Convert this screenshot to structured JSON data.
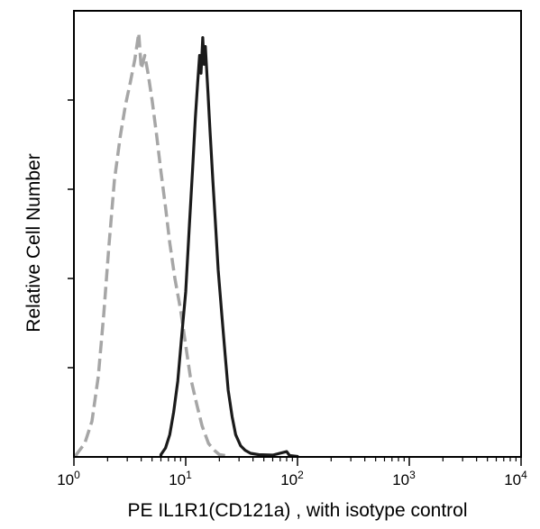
{
  "chart_data": {
    "type": "line",
    "xlabel": "PE IL1R1(CD121a) , with isotype control",
    "ylabel": "Relative Cell Number",
    "x_scale": "log",
    "xlim": [
      1,
      10000
    ],
    "ylim": [
      0,
      100
    ],
    "x_ticks": [
      {
        "value": 1,
        "base": "10",
        "exp": "0"
      },
      {
        "value": 10,
        "base": "10",
        "exp": "1"
      },
      {
        "value": 100,
        "base": "10",
        "exp": "2"
      },
      {
        "value": 1000,
        "base": "10",
        "exp": "3"
      },
      {
        "value": 10000,
        "base": "10",
        "exp": "4"
      }
    ],
    "y_ticks": [
      20,
      40,
      60,
      80
    ],
    "grid": false,
    "legend": "none",
    "series": [
      {
        "style": "dashed",
        "color": "#a6a6a6",
        "points": [
          [
            1.05,
            0.5
          ],
          [
            1.25,
            3
          ],
          [
            1.45,
            8
          ],
          [
            1.65,
            18
          ],
          [
            1.85,
            32
          ],
          [
            2.05,
            47
          ],
          [
            2.3,
            62
          ],
          [
            2.6,
            72
          ],
          [
            2.9,
            79
          ],
          [
            3.2,
            84
          ],
          [
            3.5,
            89
          ],
          [
            3.8,
            95
          ],
          [
            4.0,
            87
          ],
          [
            4.3,
            90
          ],
          [
            4.6,
            86
          ],
          [
            5.0,
            80
          ],
          [
            5.5,
            72
          ],
          [
            6.0,
            64
          ],
          [
            6.6,
            56
          ],
          [
            7.2,
            48
          ],
          [
            8.0,
            40
          ],
          [
            9.0,
            33
          ],
          [
            10.0,
            25
          ],
          [
            11.0,
            18
          ],
          [
            12.5,
            12
          ],
          [
            14.0,
            7
          ],
          [
            16.0,
            3
          ],
          [
            18.0,
            1.5
          ],
          [
            20.0,
            0.5
          ],
          [
            24.0,
            0.2
          ]
        ]
      },
      {
        "style": "solid",
        "color": "#1a1a1a",
        "points": [
          [
            6.0,
            0.5
          ],
          [
            6.6,
            2
          ],
          [
            7.2,
            5
          ],
          [
            7.8,
            10
          ],
          [
            8.5,
            17
          ],
          [
            9.2,
            27
          ],
          [
            10.0,
            37
          ],
          [
            10.8,
            52
          ],
          [
            11.5,
            64
          ],
          [
            12.2,
            76
          ],
          [
            12.8,
            84
          ],
          [
            13.3,
            90
          ],
          [
            13.7,
            86
          ],
          [
            14.2,
            94
          ],
          [
            14.6,
            88
          ],
          [
            15.0,
            92
          ],
          [
            15.8,
            82
          ],
          [
            16.5,
            73
          ],
          [
            17.5,
            62
          ],
          [
            18.5,
            52
          ],
          [
            19.5,
            42
          ],
          [
            21.0,
            32
          ],
          [
            22.5,
            23
          ],
          [
            24.0,
            15
          ],
          [
            26.0,
            9
          ],
          [
            28.0,
            5
          ],
          [
            31.0,
            2.5
          ],
          [
            34.0,
            1.5
          ],
          [
            38.0,
            0.8
          ],
          [
            45.0,
            0.5
          ],
          [
            60.0,
            0.4
          ],
          [
            80.0,
            1.2
          ],
          [
            85.0,
            0.3
          ],
          [
            100.0,
            0.1
          ]
        ]
      }
    ]
  }
}
